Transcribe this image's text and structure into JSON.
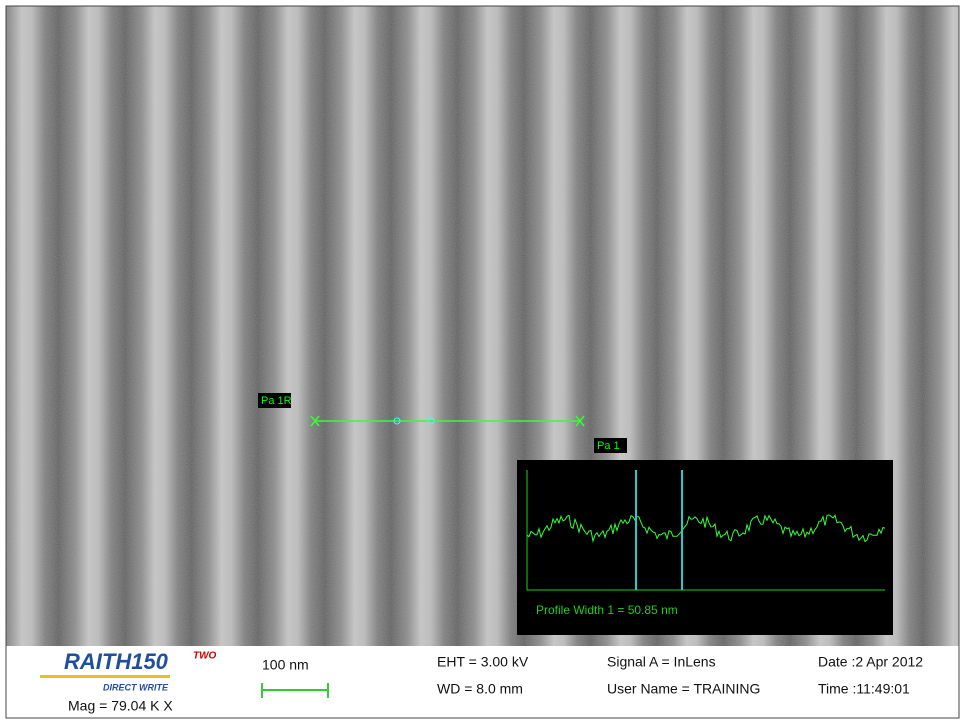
{
  "image": {
    "markers": {
      "start_label": "Pa 1R",
      "end_label": "Pa 1"
    },
    "profile": {
      "caption": "Profile Width 1 = 50.85 nm"
    },
    "info_bar": {
      "logo": {
        "name": "RAITH150",
        "suffix": "TWO",
        "tagline": "DIRECT WRITE"
      },
      "magnification": "Mag = 79.04 K X",
      "scale_bar": "100 nm",
      "eht": "EHT =  3.00 kV",
      "wd": "WD =  8.0 mm",
      "signal": "Signal A = InLens",
      "user": "User Name = TRAINING",
      "date": "Date :2 Apr 2012",
      "time": "Time :11:49:01"
    }
  }
}
